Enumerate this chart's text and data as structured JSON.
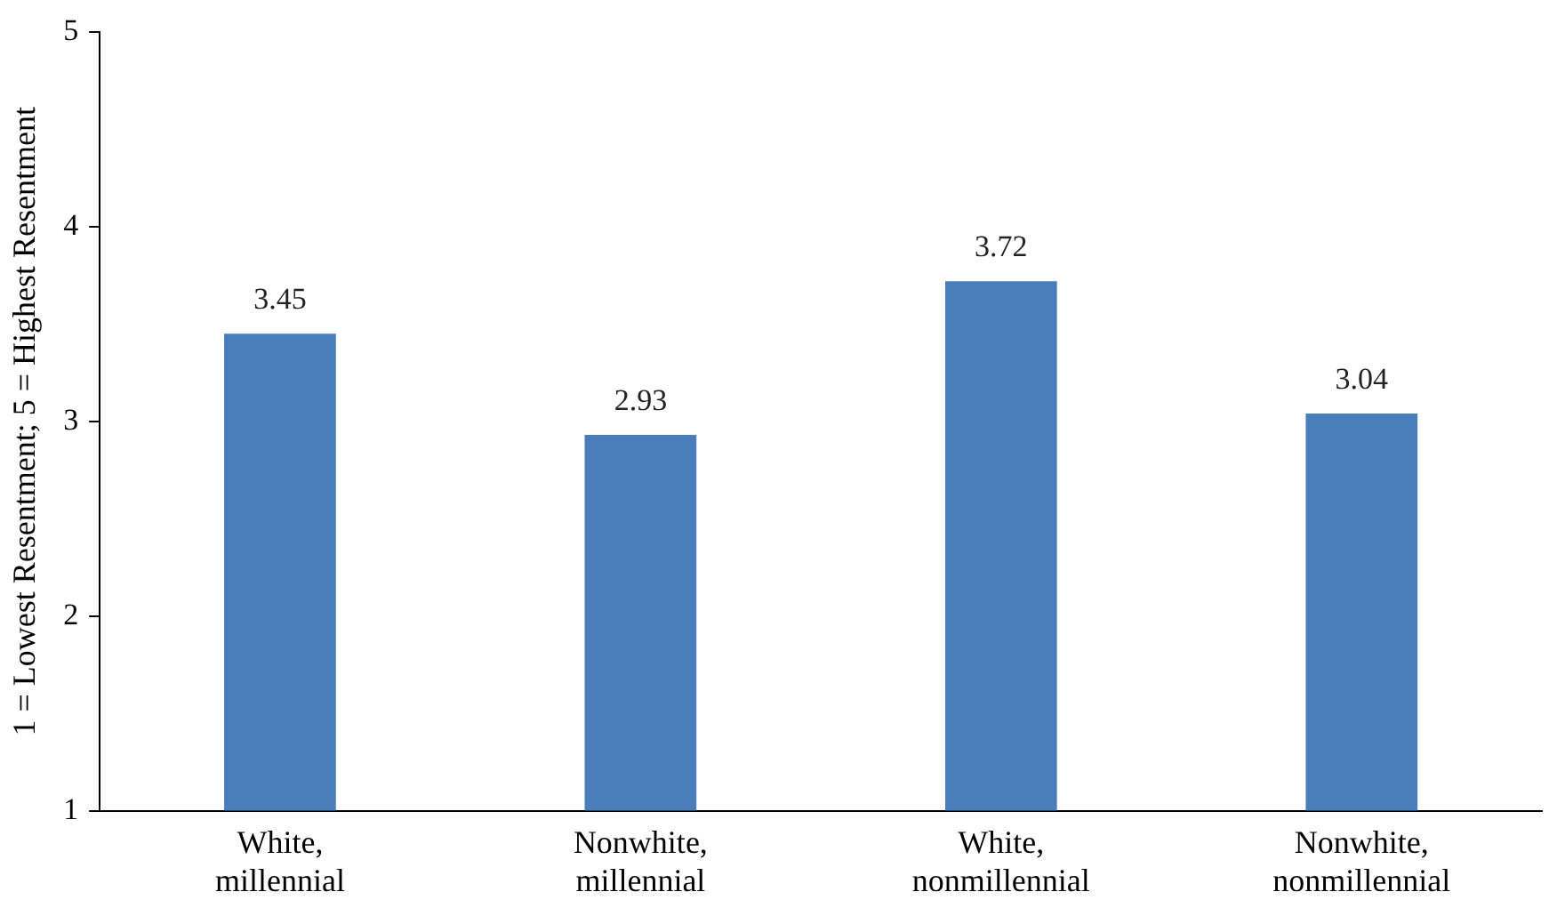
{
  "chart_data": {
    "type": "bar",
    "ylabel": "1 = Lowest Resentment; 5 = Highest Resentment",
    "categories": [
      "White,\nmillennial",
      "Nonwhite,\nmillennial",
      "White,\nnonmillennial",
      "Nonwhite,\nnonmillennial"
    ],
    "values": [
      3.45,
      2.93,
      3.72,
      3.04
    ],
    "color": "#4a7ebb",
    "ylim": [
      1,
      5
    ],
    "yticks": [
      1,
      2,
      3,
      4,
      5
    ],
    "grid": false,
    "legend": false,
    "data_labels": true
  }
}
